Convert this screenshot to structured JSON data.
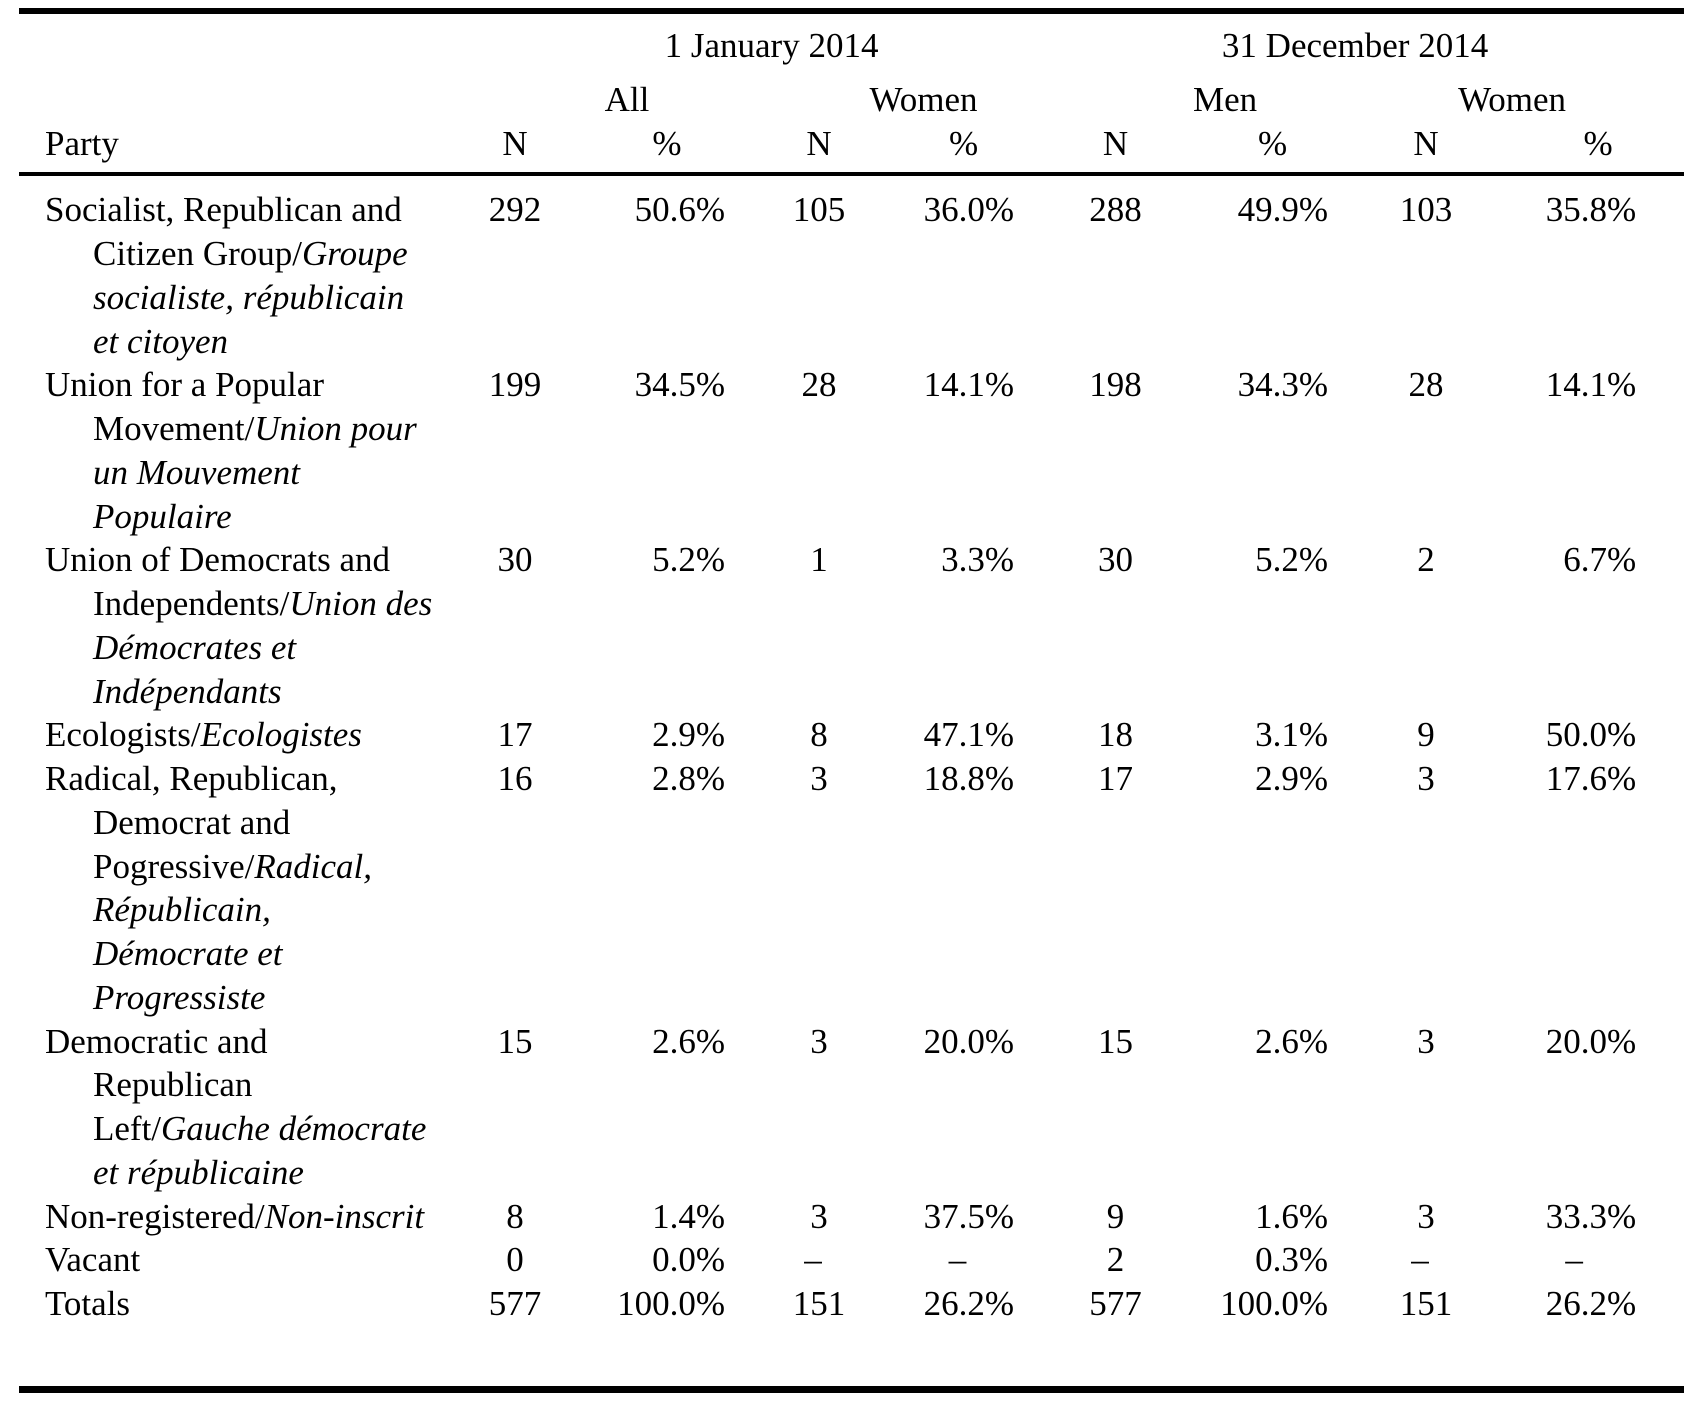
{
  "table": {
    "col_groups": [
      {
        "label": "1 January 2014",
        "span": 4
      },
      {
        "label": "31 December 2014",
        "span": 4
      }
    ],
    "sub_groups": [
      {
        "label": "All",
        "span": 2
      },
      {
        "label": "Women",
        "span": 2
      },
      {
        "label": "Men",
        "span": 2
      },
      {
        "label": "Women",
        "span": 2
      }
    ],
    "columns": [
      "Party",
      "N",
      "%",
      "N",
      "%",
      "N",
      "%",
      "N",
      "%"
    ],
    "rows": [
      {
        "party_en": "Socialist, Republican and Citizen Group",
        "party_fr": "Groupe socialiste, républicain et citoyen",
        "values": [
          "292",
          "50.6%",
          "105",
          "36.0%",
          "288",
          "49.9%",
          "103",
          "35.8%"
        ]
      },
      {
        "party_en": "Union for a Popular Movement",
        "party_fr": "Union pour un Mouvement Populaire",
        "values": [
          "199",
          "34.5%",
          "28",
          "14.1%",
          "198",
          "34.3%",
          "28",
          "14.1%"
        ]
      },
      {
        "party_en": "Union of Democrats and Independents",
        "party_fr": "Union des Démocrates et Indépendants",
        "values": [
          "30",
          "5.2%",
          "1",
          "3.3%",
          "30",
          "5.2%",
          "2",
          "6.7%"
        ]
      },
      {
        "party_en": "Ecologists",
        "party_fr": "Ecologistes",
        "values": [
          "17",
          "2.9%",
          "8",
          "47.1%",
          "18",
          "3.1%",
          "9",
          "50.0%"
        ]
      },
      {
        "party_en": "Radical, Republican, Democrat and Pogressive",
        "party_fr": "Radical, Républicain, Démocrate et Progressiste",
        "values": [
          "16",
          "2.8%",
          "3",
          "18.8%",
          "17",
          "2.9%",
          "3",
          "17.6%"
        ]
      },
      {
        "party_en": "Democratic and Republican Left",
        "party_fr": "Gauche démocrate et républicaine",
        "values": [
          "15",
          "2.6%",
          "3",
          "20.0%",
          "15",
          "2.6%",
          "3",
          "20.0%"
        ]
      },
      {
        "party_en": "Non-registered",
        "party_fr": "Non-inscrit",
        "values": [
          "8",
          "1.4%",
          "3",
          "37.5%",
          "9",
          "1.6%",
          "3",
          "33.3%"
        ]
      },
      {
        "party_en": "Vacant",
        "party_fr": null,
        "values": [
          "0",
          "0.0%",
          "–",
          "–",
          "2",
          "0.3%",
          "–",
          "–"
        ]
      },
      {
        "party_en": "Totals",
        "party_fr": null,
        "values": [
          "577",
          "100.0%",
          "151",
          "26.2%",
          "577",
          "100.0%",
          "151",
          "26.2%"
        ]
      }
    ]
  }
}
